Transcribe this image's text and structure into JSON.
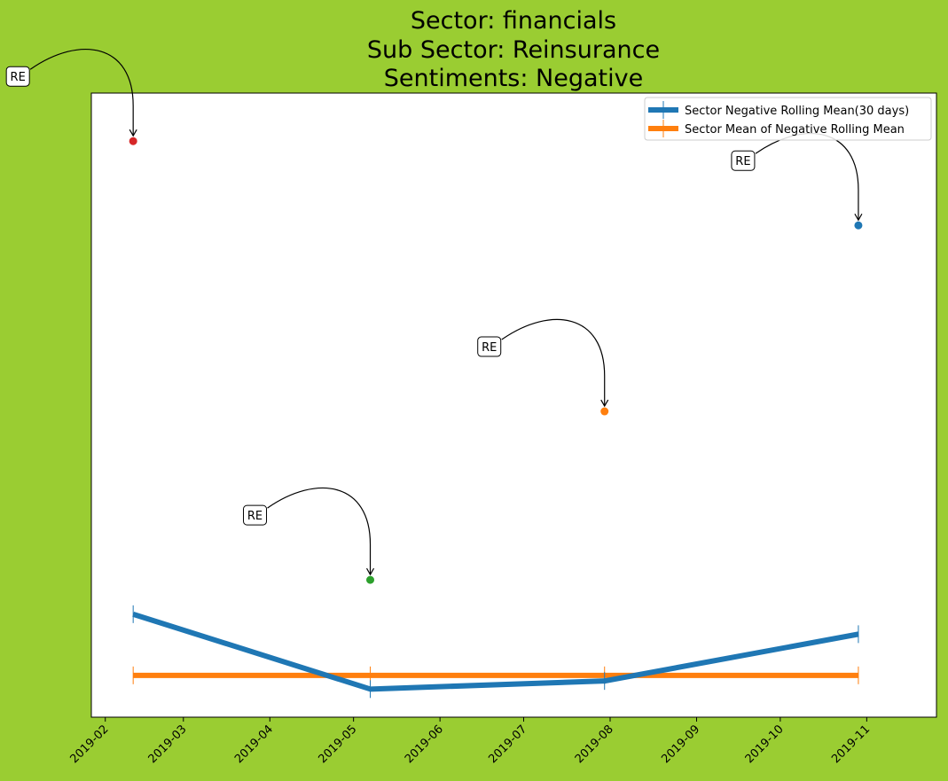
{
  "chart_data": {
    "type": "line",
    "title_lines": [
      "Sector:  financials",
      "Sub Sector:  Reinsurance",
      "Sentiments:  Negative"
    ],
    "xlabel": "",
    "ylabel": "",
    "x_axis": {
      "type": "date",
      "range": [
        "2019-01-27",
        "2019-11-26"
      ],
      "ticks": [
        "2019-02-01",
        "2019-03-01",
        "2019-04-01",
        "2019-05-01",
        "2019-06-01",
        "2019-07-01",
        "2019-08-01",
        "2019-09-01",
        "2019-10-01",
        "2019-11-01"
      ],
      "tick_labels": [
        "2019-02",
        "2019-03",
        "2019-04",
        "2019-05",
        "2019-06",
        "2019-07",
        "2019-08",
        "2019-09",
        "2019-10",
        "2019-11"
      ]
    },
    "y_axis": {
      "range": [
        0,
        1
      ],
      "ticks_visible": false
    },
    "grid": false,
    "legend": {
      "placement": "top-right"
    },
    "series": [
      {
        "name": "Sector Negative Rolling Mean(30 days)",
        "color": "#1f77b4",
        "x": [
          "2019-02-11",
          "2019-05-07",
          "2019-07-30",
          "2019-10-29"
        ],
        "y": [
          0.165,
          0.045,
          0.058,
          0.133
        ]
      },
      {
        "name": "Sector Mean of Negative Rolling Mean",
        "color": "#ff7f0e",
        "x": [
          "2019-02-11",
          "2019-05-07",
          "2019-07-30",
          "2019-10-29"
        ],
        "y": [
          0.067,
          0.067,
          0.067,
          0.067
        ]
      }
    ],
    "points": [
      {
        "x": "2019-02-11",
        "y": 0.923,
        "color": "#d62728",
        "label": "RE"
      },
      {
        "x": "2019-05-07",
        "y": 0.22,
        "color": "#2ca02c",
        "label": "RE"
      },
      {
        "x": "2019-07-30",
        "y": 0.49,
        "color": "#ff7f0e",
        "label": "RE"
      },
      {
        "x": "2019-10-29",
        "y": 0.788,
        "color": "#1f77b4",
        "label": "RE"
      }
    ]
  }
}
